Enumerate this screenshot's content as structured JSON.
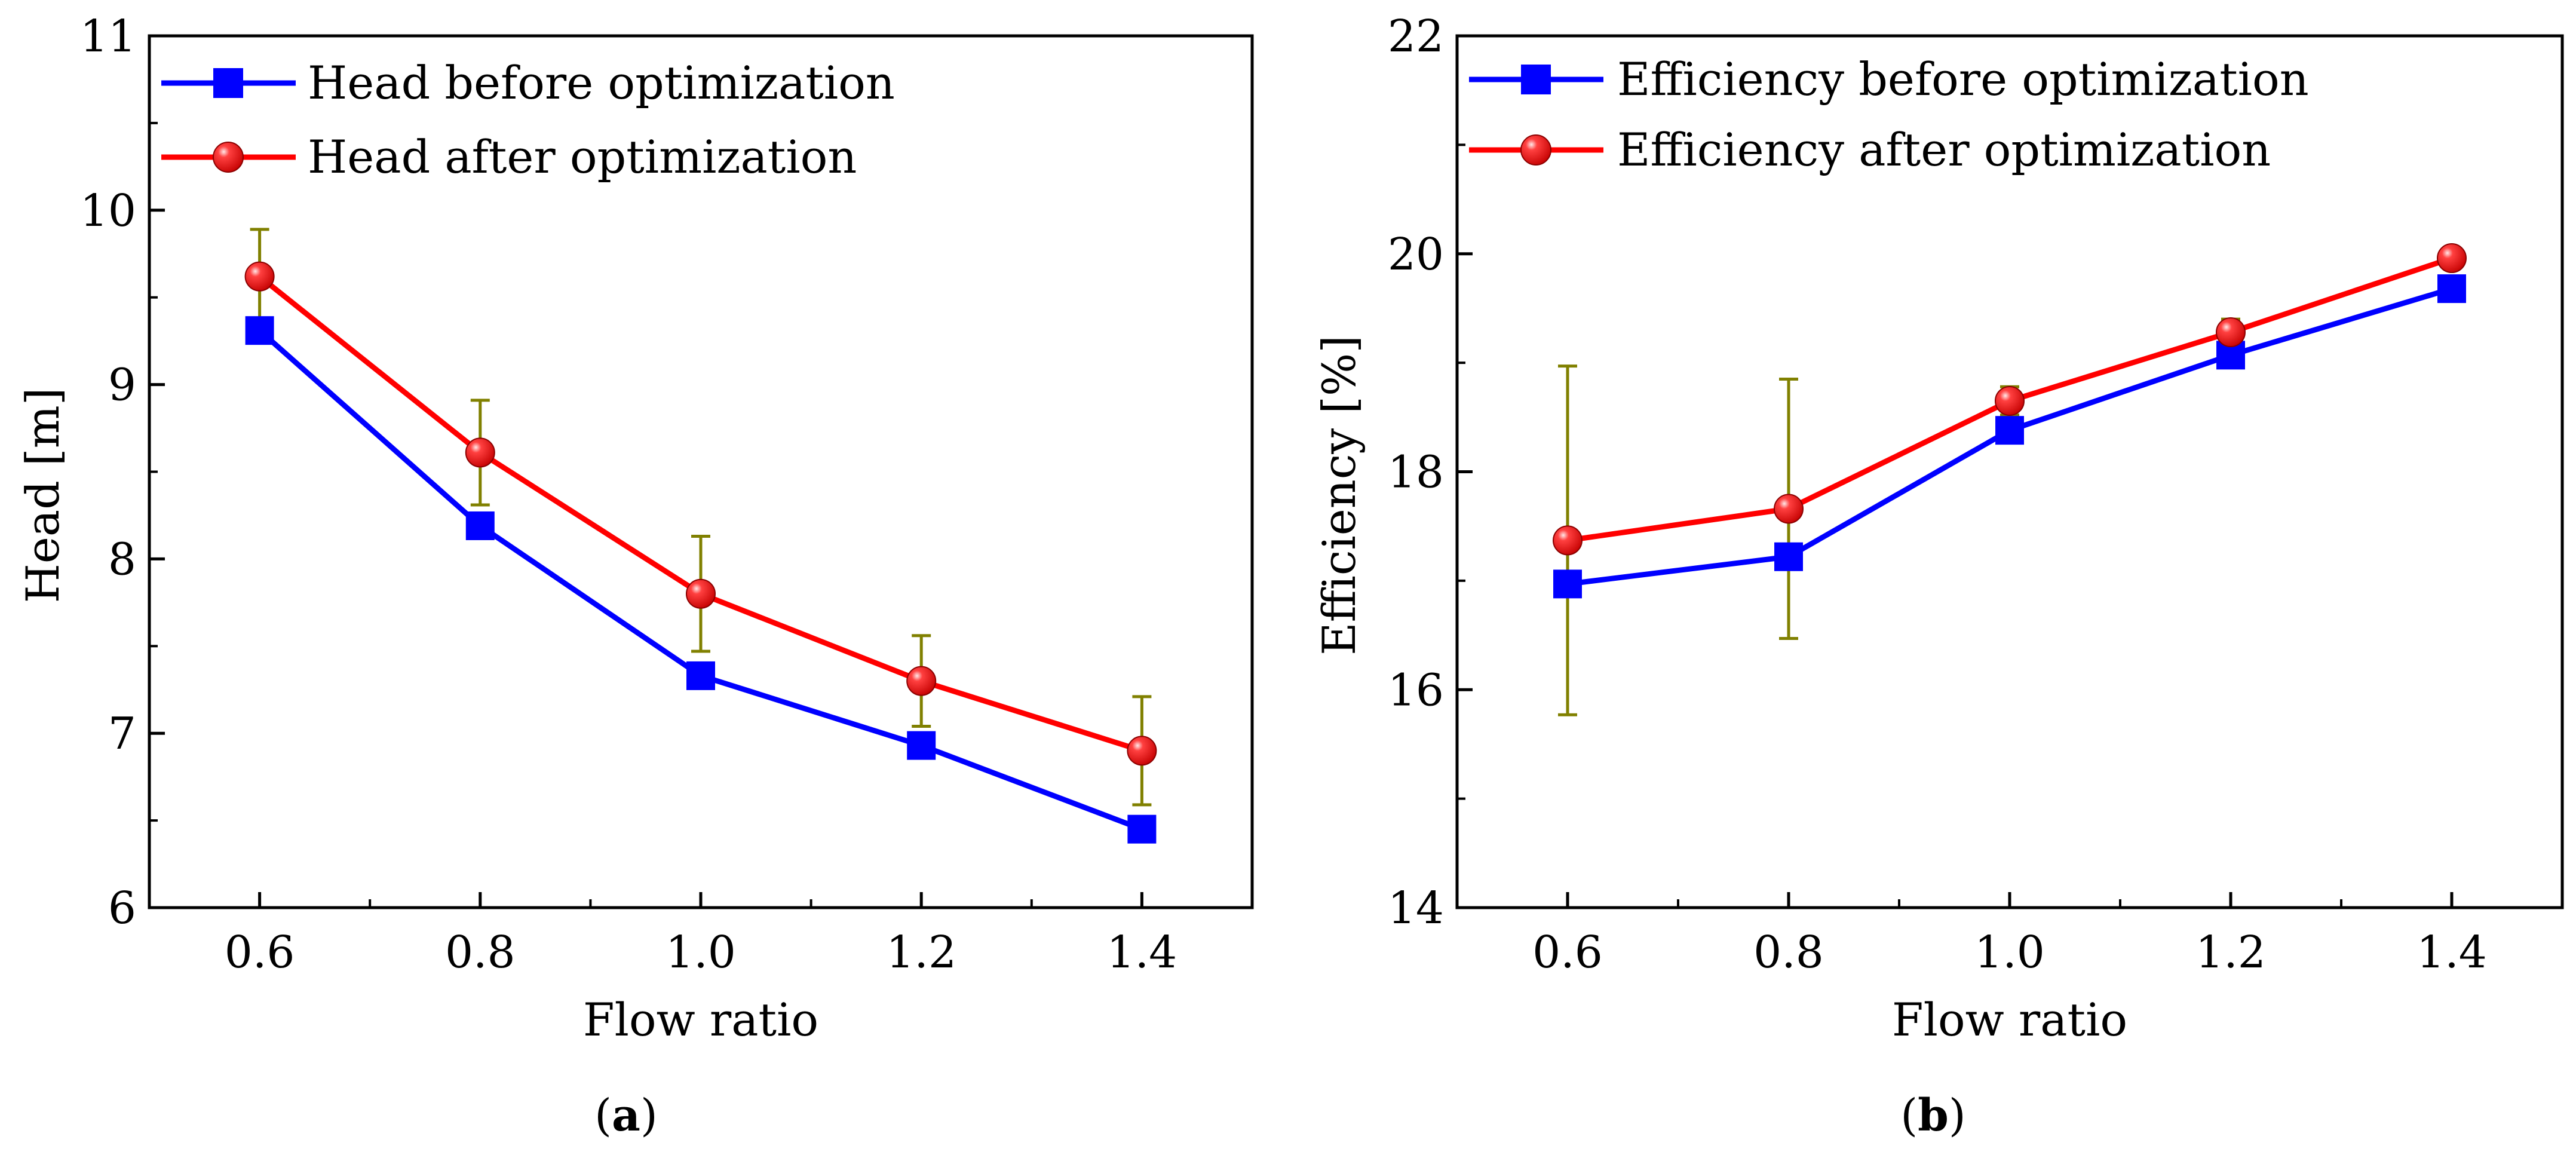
{
  "colors": {
    "before": "#0000ff",
    "after": "#ff0000",
    "error_bar": "#808000",
    "axis": "#000000"
  },
  "chart_data": [
    {
      "type": "line",
      "panel": "(a)",
      "panel_letter": "a",
      "title": "",
      "xlabel": "Flow ratio",
      "ylabel": "Head [m]",
      "xlim": [
        0.5,
        1.5
      ],
      "ylim": [
        6,
        11
      ],
      "xticks": [
        0.6,
        0.8,
        1.0,
        1.2,
        1.4
      ],
      "xtick_labels": [
        "0.6",
        "0.8",
        "1.0",
        "1.2",
        "1.4"
      ],
      "yticks": [
        6,
        7,
        8,
        9,
        10,
        11
      ],
      "ytick_labels": [
        "6",
        "7",
        "8",
        "9",
        "10",
        "11"
      ],
      "x": [
        0.6,
        0.8,
        1.0,
        1.2,
        1.4
      ],
      "legend_position": "top-left",
      "series": [
        {
          "name": "Head before optimization",
          "marker": "square",
          "color": "#0000ff",
          "values": [
            9.31,
            8.19,
            7.33,
            6.93,
            6.45
          ]
        },
        {
          "name": "Head after optimization",
          "marker": "circle",
          "color": "#ff0000",
          "values": [
            9.62,
            8.61,
            7.8,
            7.3,
            6.9
          ],
          "error": [
            0.27,
            0.3,
            0.33,
            0.26,
            0.31
          ]
        }
      ],
      "grid": false
    },
    {
      "type": "line",
      "panel": "(b)",
      "panel_letter": "b",
      "title": "",
      "xlabel": "Flow ratio",
      "ylabel": "Efficiency [%]",
      "xlim": [
        0.5,
        1.5
      ],
      "ylim": [
        14,
        22
      ],
      "xticks": [
        0.6,
        0.8,
        1.0,
        1.2,
        1.4
      ],
      "xtick_labels": [
        "0.6",
        "0.8",
        "1.0",
        "1.2",
        "1.4"
      ],
      "yticks": [
        14,
        16,
        18,
        20,
        22
      ],
      "ytick_labels": [
        "14",
        "16",
        "18",
        "20",
        "22"
      ],
      "x": [
        0.6,
        0.8,
        1.0,
        1.2,
        1.4
      ],
      "legend_position": "top-left",
      "series": [
        {
          "name": "Efficiency before optimization",
          "marker": "square",
          "color": "#0000ff",
          "values": [
            16.97,
            17.22,
            18.38,
            19.07,
            19.68
          ]
        },
        {
          "name": "Efficiency after optimization",
          "marker": "circle",
          "color": "#ff0000",
          "values": [
            17.37,
            17.66,
            18.65,
            19.28,
            19.96
          ],
          "error": [
            1.6,
            1.19,
            0.13,
            0.12,
            0.03
          ]
        }
      ],
      "grid": false
    }
  ]
}
